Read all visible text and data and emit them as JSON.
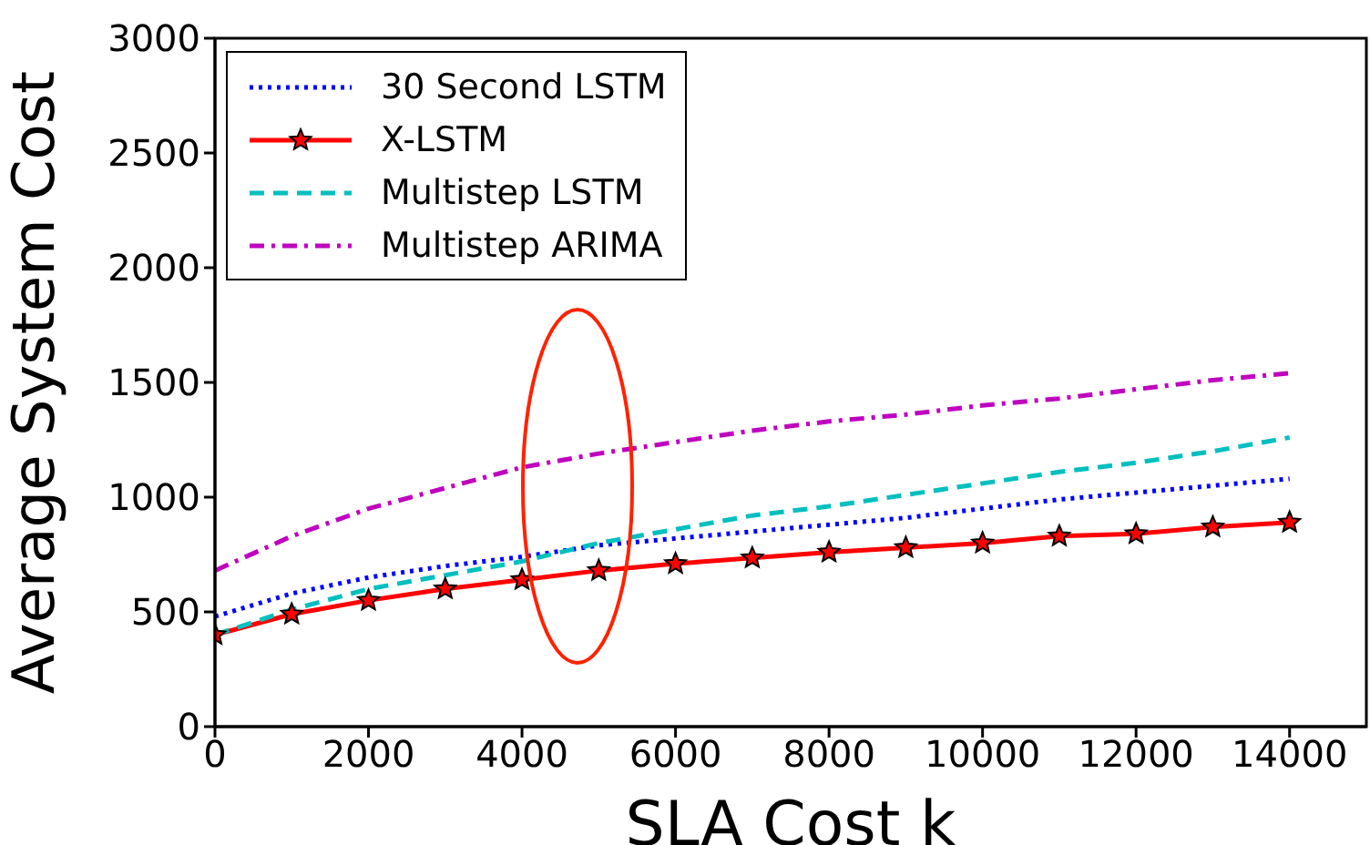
{
  "chart_data": {
    "type": "line",
    "xlabel": "SLA Cost k",
    "ylabel": "Average System Cost",
    "x": [
      0,
      1000,
      2000,
      3000,
      4000,
      5000,
      6000,
      7000,
      8000,
      9000,
      10000,
      11000,
      12000,
      13000,
      14000
    ],
    "series": [
      {
        "name": "30 Second LSTM",
        "color": "#0000ff",
        "line_style": "dotted",
        "marker": "none",
        "values": [
          480,
          580,
          650,
          700,
          740,
          790,
          820,
          850,
          880,
          910,
          950,
          990,
          1020,
          1050,
          1080
        ]
      },
      {
        "name": "X-LSTM",
        "color": "#ff0000",
        "line_style": "solid",
        "marker": "star",
        "values": [
          400,
          490,
          550,
          600,
          640,
          680,
          710,
          735,
          760,
          780,
          800,
          830,
          840,
          870,
          890
        ]
      },
      {
        "name": "Multistep LSTM",
        "color": "#00bfbf",
        "line_style": "dashed",
        "marker": "none",
        "values": [
          400,
          510,
          600,
          660,
          720,
          800,
          860,
          920,
          960,
          1010,
          1060,
          1110,
          1150,
          1200,
          1260
        ]
      },
      {
        "name": "Multistep ARIMA",
        "color": "#bf00bf",
        "line_style": "dashdot",
        "marker": "none",
        "values": [
          680,
          830,
          950,
          1040,
          1130,
          1190,
          1240,
          1290,
          1330,
          1360,
          1400,
          1430,
          1470,
          1510,
          1540
        ]
      }
    ],
    "xlim": [
      0,
      15000
    ],
    "xticks": [
      0,
      2000,
      4000,
      6000,
      8000,
      10000,
      12000,
      14000
    ],
    "ylim": [
      0,
      3000
    ],
    "yticks": [
      0,
      500,
      1000,
      1500,
      2000,
      2500,
      3000
    ],
    "legend": "top left"
  }
}
